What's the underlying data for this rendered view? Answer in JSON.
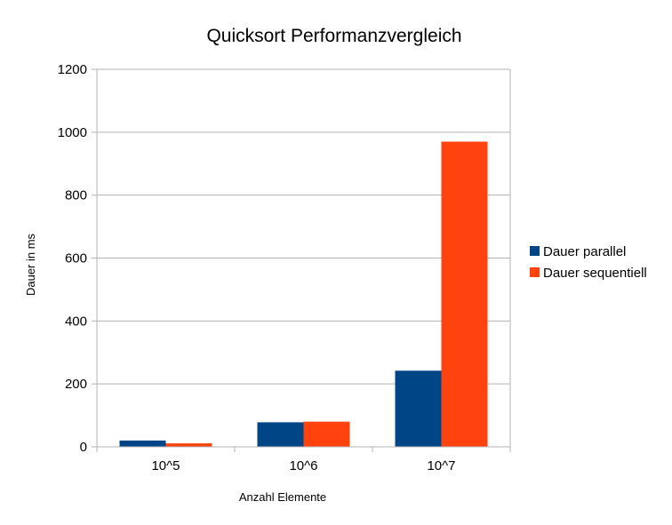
{
  "chart_data": {
    "type": "bar",
    "title": "Quicksort Performanzvergleich",
    "xlabel": "Anzahl Elemente",
    "ylabel": "Dauer in ms",
    "categories": [
      "10^5",
      "10^6",
      "10^7"
    ],
    "series": [
      {
        "name": "Dauer parallel",
        "color": "#004586",
        "values": [
          20,
          78,
          242
        ]
      },
      {
        "name": "Dauer sequentiell",
        "color": "#ff420e",
        "values": [
          11,
          80,
          970
        ]
      }
    ],
    "ylim": [
      0,
      1200
    ],
    "yticks": [
      0,
      200,
      400,
      600,
      800,
      1000,
      1200
    ],
    "grid": true,
    "legend": "right"
  }
}
